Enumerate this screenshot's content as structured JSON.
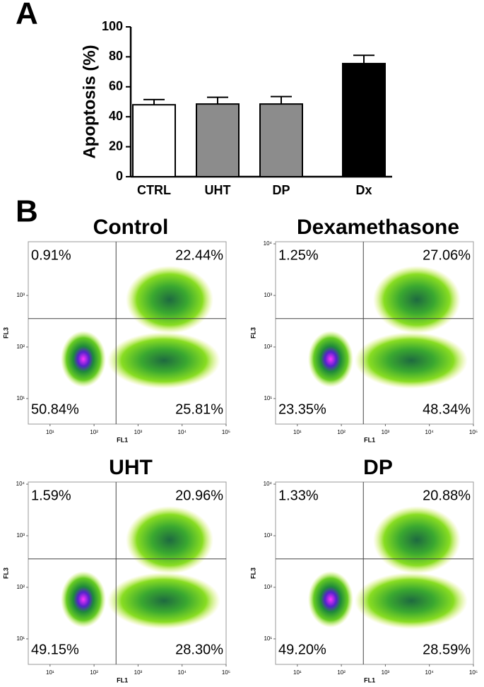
{
  "chart_data": [
    {
      "type": "bar",
      "panel": "A",
      "ylabel": "Apoptosis (%)",
      "categories": [
        "CTRL",
        "UHT",
        "DP",
        "Dx"
      ],
      "values": [
        48,
        48.5,
        48.5,
        75.5
      ],
      "errors": [
        3.5,
        4.5,
        5,
        5.5
      ],
      "colors": [
        "#ffffff",
        "#8c8c8c",
        "#8c8c8c",
        "#000000"
      ],
      "ylim": [
        0,
        100
      ],
      "yticks": [
        0,
        20,
        40,
        60,
        80,
        100
      ]
    },
    {
      "type": "density",
      "panel": "B",
      "title": "Control",
      "xlabel": "FL1",
      "ylabel": "FL3",
      "log": true,
      "xlim": [
        3.2,
        100000
      ],
      "ylim": [
        3.2,
        11000
      ],
      "x_gate": 316,
      "y_gate": 355,
      "xticks": [
        {
          "value": 10,
          "label": "10¹"
        },
        {
          "value": 100,
          "label": "10²"
        },
        {
          "value": 1000,
          "label": "10³"
        },
        {
          "value": 10000,
          "label": "10⁴"
        },
        {
          "value": 100000,
          "label": "10⁵"
        }
      ],
      "yticks": [
        {
          "value": 10,
          "label": "10¹"
        },
        {
          "value": 100,
          "label": "10²"
        },
        {
          "value": 1000,
          "label": "10³"
        }
      ],
      "quadrant_values": [
        0.91,
        22.44,
        50.84,
        25.81
      ],
      "quadrant_labels": [
        "0.91%",
        "22.44%",
        "50.84%",
        "25.81%"
      ]
    },
    {
      "type": "density",
      "title": "Dexamethasone",
      "xlabel": "FL1",
      "ylabel": "FL3",
      "log": true,
      "xlim": [
        3.2,
        100000
      ],
      "ylim": [
        3.2,
        11000
      ],
      "x_gate": 316,
      "y_gate": 355,
      "xticks": [
        {
          "value": 10,
          "label": "10¹"
        },
        {
          "value": 100,
          "label": "10²"
        },
        {
          "value": 1000,
          "label": "10³"
        },
        {
          "value": 10000,
          "label": "10⁴"
        },
        {
          "value": 100000,
          "label": "10⁵"
        }
      ],
      "yticks": [
        {
          "value": 10,
          "label": "10¹"
        },
        {
          "value": 100,
          "label": "10²"
        },
        {
          "value": 1000,
          "label": "10³"
        },
        {
          "value": 10000,
          "label": "10⁴"
        }
      ],
      "quadrant_values": [
        1.25,
        27.06,
        23.35,
        48.34
      ],
      "quadrant_labels": [
        "1.25%",
        "27.06%",
        "23.35%",
        "48.34%"
      ]
    },
    {
      "type": "density",
      "title": "UHT",
      "xlabel": "FL1",
      "ylabel": "FL3",
      "log": true,
      "xlim": [
        3.2,
        100000
      ],
      "ylim": [
        3.2,
        11000
      ],
      "x_gate": 316,
      "y_gate": 355,
      "xticks": [
        {
          "value": 10,
          "label": "10¹"
        },
        {
          "value": 100,
          "label": "10²"
        },
        {
          "value": 1000,
          "label": "10³"
        },
        {
          "value": 10000,
          "label": "10⁴"
        },
        {
          "value": 100000,
          "label": "10⁵"
        }
      ],
      "yticks": [
        {
          "value": 10,
          "label": "10¹"
        },
        {
          "value": 100,
          "label": "10²"
        },
        {
          "value": 1000,
          "label": "10³"
        },
        {
          "value": 10000,
          "label": "10⁴"
        }
      ],
      "quadrant_values": [
        1.59,
        20.96,
        49.15,
        28.3
      ],
      "quadrant_labels": [
        "1.59%",
        "20.96%",
        "49.15%",
        "28.30%"
      ]
    },
    {
      "type": "density",
      "title": "DP",
      "xlabel": "FL1",
      "ylabel": "FL3",
      "log": true,
      "xlim": [
        3.2,
        100000
      ],
      "ylim": [
        3.2,
        11000
      ],
      "x_gate": 316,
      "y_gate": 355,
      "xticks": [
        {
          "value": 10,
          "label": "10¹"
        },
        {
          "value": 100,
          "label": "10²"
        },
        {
          "value": 1000,
          "label": "10³"
        },
        {
          "value": 10000,
          "label": "10⁴"
        },
        {
          "value": 100000,
          "label": "10⁵"
        }
      ],
      "yticks": [
        {
          "value": 10,
          "label": "10¹"
        },
        {
          "value": 100,
          "label": "10²"
        },
        {
          "value": 1000,
          "label": "10³"
        },
        {
          "value": 10000,
          "label": "10⁴"
        }
      ],
      "quadrant_values": [
        1.33,
        20.88,
        49.2,
        28.59
      ],
      "quadrant_labels": [
        "1.33%",
        "20.88%",
        "49.20%",
        "28.59%"
      ]
    }
  ]
}
